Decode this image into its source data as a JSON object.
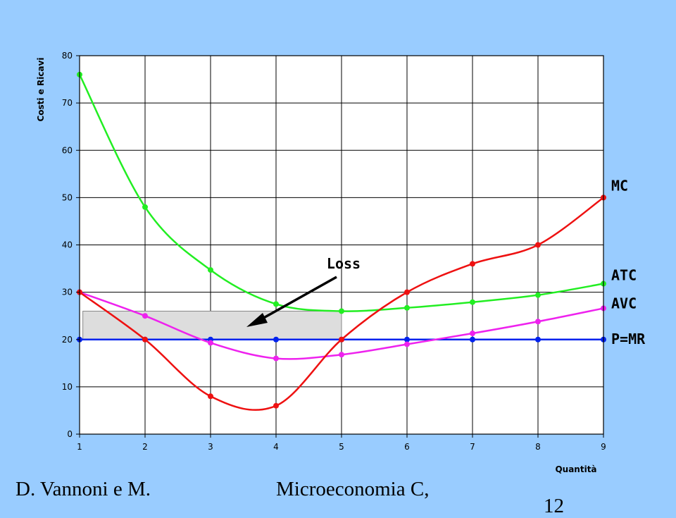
{
  "chart_data": {
    "type": "line",
    "title": "",
    "xlabel": "Quantità",
    "ylabel": "Costi e Ricavi",
    "xlim": [
      1,
      9
    ],
    "ylim": [
      0,
      80
    ],
    "x_ticks": [
      1,
      2,
      3,
      4,
      5,
      6,
      7,
      8,
      9
    ],
    "y_ticks": [
      0,
      10,
      20,
      30,
      40,
      50,
      60,
      70,
      80
    ],
    "grid": true,
    "x": [
      1,
      2,
      3,
      4,
      5,
      6,
      7,
      8,
      9
    ],
    "series": [
      {
        "name": "MC",
        "color": "#ee1111",
        "values": [
          30,
          20,
          8,
          6,
          20,
          30,
          36,
          40,
          50
        ]
      },
      {
        "name": "ATC",
        "color": "#22ee22",
        "values": [
          76,
          48,
          34.7,
          27.5,
          26,
          26.7,
          27.9,
          29.4,
          31.8
        ]
      },
      {
        "name": "AVC",
        "color": "#ee22ee",
        "values": [
          30,
          25,
          19.3,
          16,
          16.8,
          19,
          21.3,
          23.8,
          26.6
        ]
      },
      {
        "name": "P=MR",
        "color": "#0022ee",
        "values": [
          20,
          20,
          20,
          20,
          20,
          20,
          20,
          20,
          20
        ]
      }
    ],
    "annotations": [
      {
        "text": "Loss",
        "shaded_region": {
          "x": [
            1.05,
            5
          ],
          "y": [
            20,
            26
          ]
        }
      }
    ]
  },
  "footer": {
    "left": "D. Vannoni e M.",
    "center": "Microeconomia C,",
    "page_number": "12"
  }
}
